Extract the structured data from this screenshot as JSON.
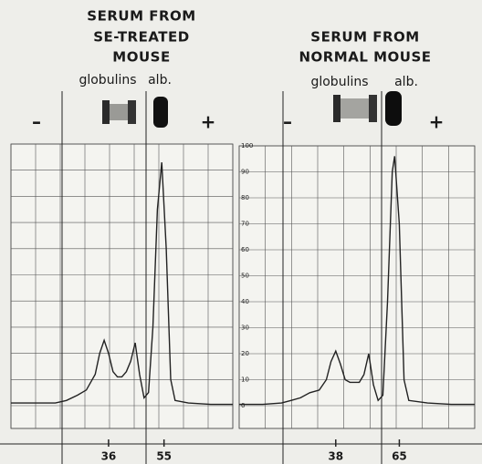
{
  "chart_data": [
    {
      "type": "line",
      "title": [
        "SERUM FROM",
        "SE-TREATED",
        "MOUSE"
      ],
      "globulins_label": "globulins",
      "albumin_label": "alb.",
      "minus_label": "–",
      "plus_label": "+",
      "x": [
        0,
        10,
        20,
        25,
        30,
        34,
        38,
        40,
        42,
        44,
        46,
        48,
        50,
        52,
        54,
        56,
        58,
        60,
        62,
        64,
        66,
        68,
        70,
        72,
        74,
        80,
        90,
        100
      ],
      "series": [
        {
          "color": "#222222",
          "values": [
            1,
            1,
            1,
            2,
            4,
            6,
            12,
            20,
            25,
            20,
            13,
            11,
            11,
            13,
            17,
            24,
            12,
            3,
            5,
            30,
            75,
            93,
            60,
            10,
            2,
            1,
            0.5,
            0.5
          ]
        }
      ],
      "xlim": [
        0,
        100
      ],
      "ylim": [
        0,
        100
      ],
      "yticks": [
        0,
        10,
        20,
        30,
        40,
        50,
        60,
        70,
        80,
        90,
        100
      ],
      "ytick_labels": false,
      "grid": true,
      "annotations": [
        {
          "text": "36",
          "x": 44
        },
        {
          "text": "55",
          "x": 69
        }
      ]
    },
    {
      "type": "line",
      "title": [
        "SERUM FROM",
        "NORMAL MOUSE"
      ],
      "globulins_label": "globulins",
      "albumin_label": "alb.",
      "minus_label": "–",
      "plus_label": "+",
      "x": [
        0,
        10,
        18,
        22,
        26,
        30,
        34,
        37,
        39,
        41,
        43,
        45,
        47,
        49,
        51,
        53,
        55,
        57,
        59,
        61,
        63,
        65,
        66,
        68,
        70,
        72,
        80,
        90,
        100
      ],
      "series": [
        {
          "color": "#222222",
          "values": [
            0.5,
            0.5,
            1,
            2,
            3,
            5,
            6,
            10,
            17,
            21,
            16,
            10,
            9,
            9,
            9,
            12,
            20,
            8,
            2,
            4,
            40,
            90,
            96,
            70,
            10,
            2,
            1,
            0.5,
            0.5
          ]
        }
      ],
      "xlim": [
        0,
        100
      ],
      "ylim": [
        0,
        100
      ],
      "yticks": [
        0,
        10,
        20,
        30,
        40,
        50,
        60,
        70,
        80,
        90,
        100
      ],
      "ytick_labels": true,
      "grid": true,
      "annotations": [
        {
          "text": "38",
          "x": 41
        },
        {
          "text": "65",
          "x": 68
        }
      ]
    }
  ]
}
